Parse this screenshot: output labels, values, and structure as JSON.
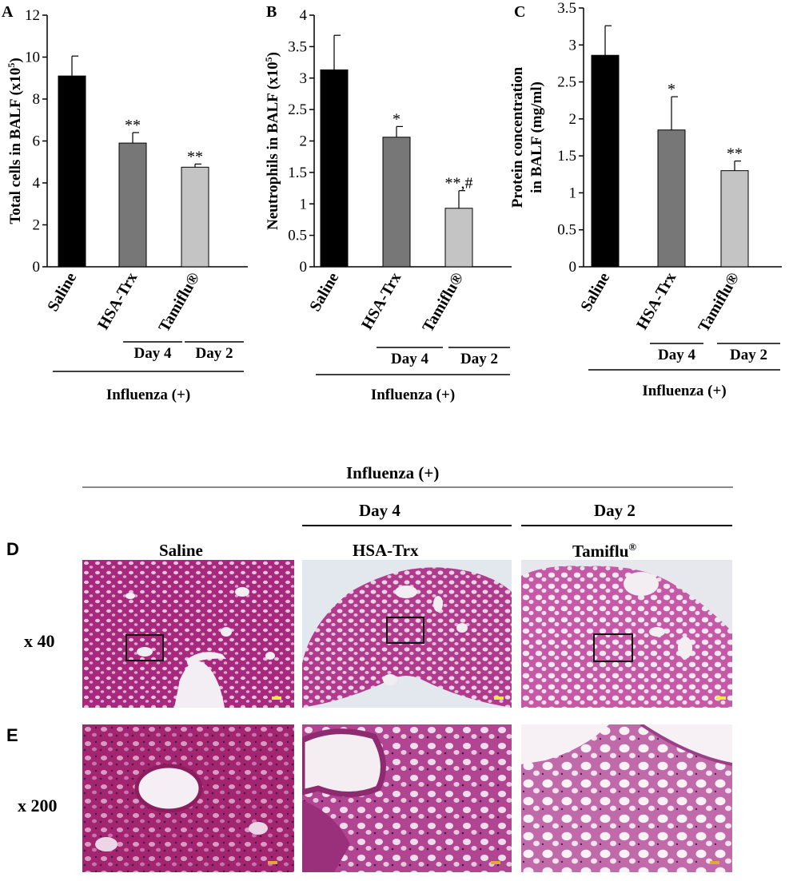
{
  "panels": {
    "A": {
      "letter": "A",
      "ylabel": "Total cells in BALF (x10",
      "ylabel_sup": "5",
      "ylabel_end": ")"
    },
    "B": {
      "letter": "B",
      "ylabel": "Neutrophils in BALF (x10",
      "ylabel_sup": "5",
      "ylabel_end": ")"
    },
    "C": {
      "letter": "C",
      "ylabel_line1": "Protein concentration",
      "ylabel_line2": "in BALF (mg/ml)"
    }
  },
  "group_labels": {
    "day4": "Day 4",
    "day2": "Day 2",
    "influenza": "Influenza (+)"
  },
  "chart_data": [
    {
      "type": "bar",
      "categories": [
        "Saline",
        "HSA-Trx",
        "Tamiflu®"
      ],
      "values": [
        9.1,
        5.9,
        4.75
      ],
      "errors": [
        0.95,
        0.5,
        0.15
      ],
      "annotations": [
        "",
        "**",
        "**"
      ],
      "colors": [
        "#000000",
        "#777777",
        "#c4c4c4"
      ],
      "ylabel": "Total cells in BALF (x10^5)",
      "ylim": [
        0,
        12
      ],
      "yticks": [
        "0",
        "2",
        "4",
        "6",
        "8",
        "10",
        "12"
      ]
    },
    {
      "type": "bar",
      "categories": [
        "Saline",
        "HSA-Trx",
        "Tamiflu®"
      ],
      "values": [
        3.13,
        2.06,
        0.93
      ],
      "errors": [
        0.55,
        0.17,
        0.28
      ],
      "annotations": [
        "",
        "*",
        "**,#"
      ],
      "colors": [
        "#000000",
        "#777777",
        "#c4c4c4"
      ],
      "ylabel": "Neutrophils in BALF (x10^5)",
      "ylim": [
        0,
        4
      ],
      "yticks": [
        "0",
        "0.5",
        "1",
        "1.5",
        "2",
        "2.5",
        "3",
        "3.5",
        "4"
      ]
    },
    {
      "type": "bar",
      "categories": [
        "Saline",
        "HSA-Trx",
        "Tamiflu®"
      ],
      "values": [
        2.86,
        1.85,
        1.3
      ],
      "errors": [
        0.4,
        0.45,
        0.13
      ],
      "annotations": [
        "",
        "*",
        "**"
      ],
      "colors": [
        "#000000",
        "#777777",
        "#c4c4c4"
      ],
      "ylabel": "Protein concentration in BALF (mg/ml)",
      "ylim": [
        0,
        3.5
      ],
      "yticks": [
        "0",
        "0.5",
        "1",
        "1.5",
        "2",
        "2.5",
        "3",
        "3.5"
      ]
    }
  ],
  "histology": {
    "header": "Influenza (+)",
    "day4": "Day 4",
    "day2": "Day 2",
    "columns": [
      "Saline",
      "HSA-Trx",
      "Tamiflu"
    ],
    "tamiflu_mark": "®",
    "row_d_letter": "D",
    "row_e_letter": "E",
    "row_d_mag": "x 40",
    "row_e_mag": "x 200"
  }
}
